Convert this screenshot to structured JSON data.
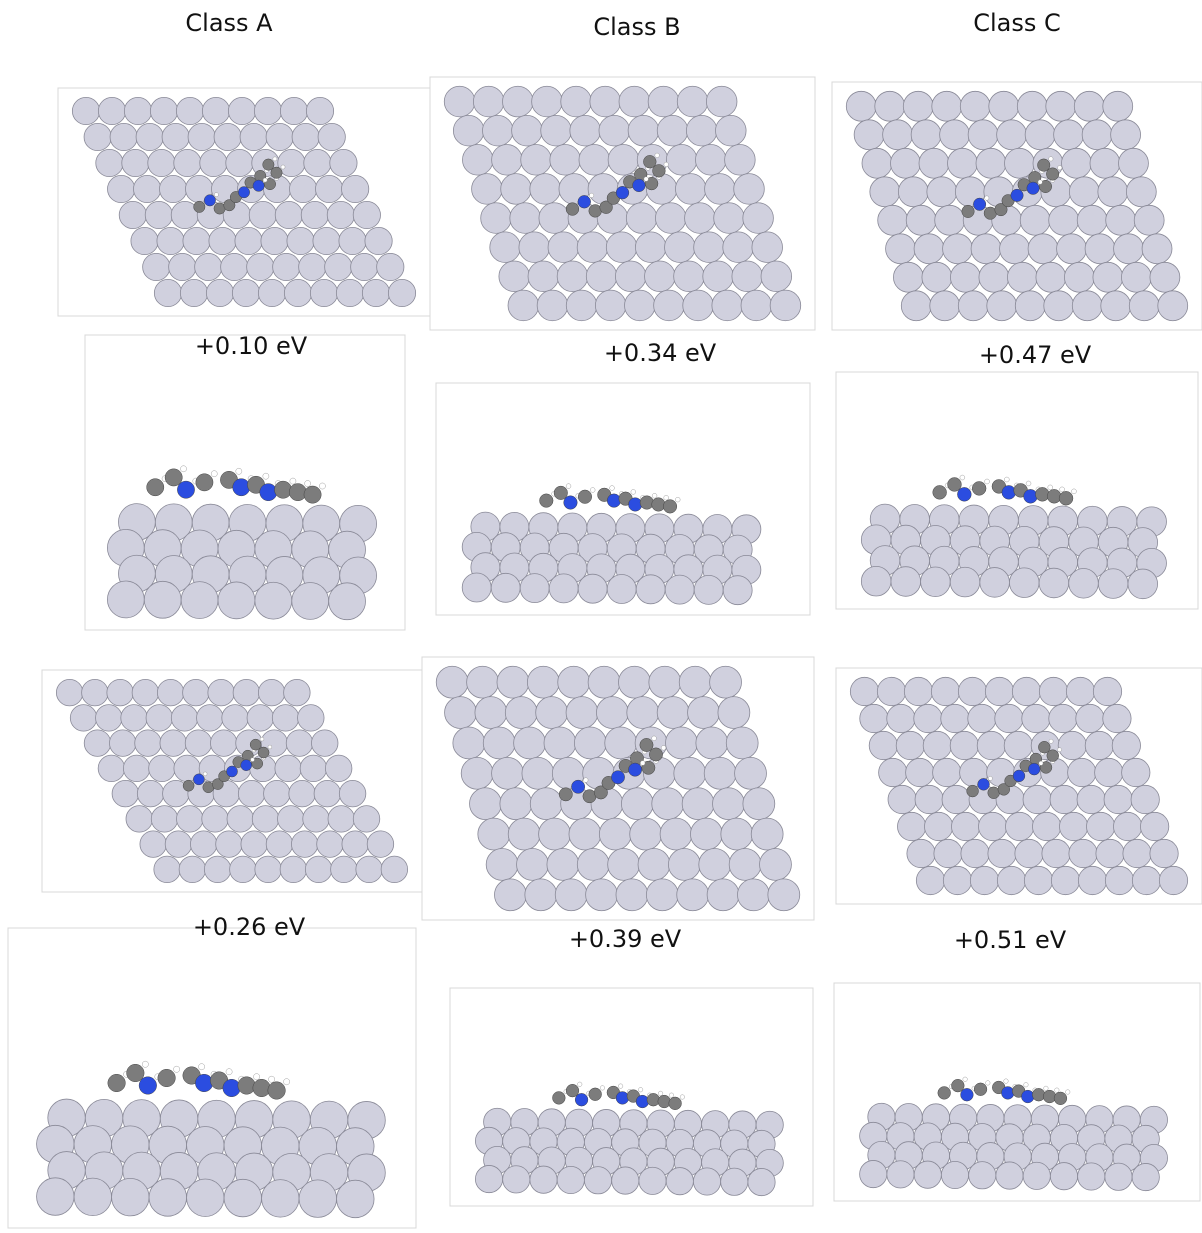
{
  "columns": [
    {
      "title": "Class A",
      "energies": [
        "+0.10 eV",
        "+0.26 eV"
      ]
    },
    {
      "title": "Class B",
      "energies": [
        "+0.34 eV",
        "+0.39 eV"
      ]
    },
    {
      "title": "Class C",
      "energies": [
        "+0.47 eV",
        "+0.51 eV"
      ]
    }
  ]
}
